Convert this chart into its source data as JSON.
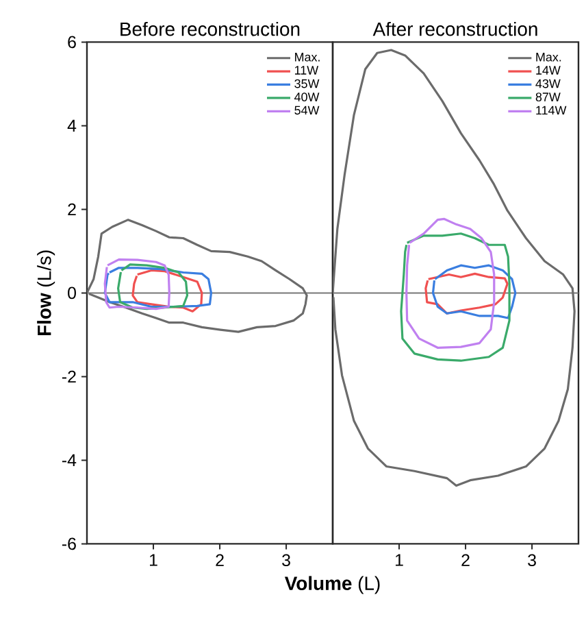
{
  "chart_data": [
    {
      "type": "line",
      "title": "Before reconstruction",
      "xlabel": "**Volume** (L)",
      "ylabel": "**Flow** (L/s)",
      "xlim": [
        0,
        3.7
      ],
      "ylim": [
        -6,
        6
      ],
      "xticks": [
        1,
        2,
        3
      ],
      "yticks": [
        -6,
        -4,
        -2,
        0,
        2,
        4,
        6
      ],
      "grid": false,
      "legend": "top right",
      "marker": "none",
      "line_style": "solid",
      "ref_lines": [
        {
          "axis": "y",
          "value": 0,
          "color": "#777777"
        }
      ],
      "series": [
        {
          "name": "Max.",
          "color": "#6b6b6b",
          "x": [
            0,
            0.1,
            0.17,
            0.22,
            0.38,
            0.62,
            0.83,
            1.04,
            1.24,
            1.45,
            1.66,
            1.87,
            2.15,
            2.42,
            2.63,
            2.84,
            3.05,
            3.25,
            3.31,
            3.29,
            3.25,
            3.11,
            2.84,
            2.56,
            2.28,
            2.01,
            1.73,
            1.45,
            1.24,
            1.04,
            0.83,
            0.55,
            0.34,
            0.17,
            0.03
          ],
          "values": [
            0,
            0.33,
            0.87,
            1.42,
            1.58,
            1.75,
            1.62,
            1.48,
            1.33,
            1.31,
            1.15,
            1.0,
            0.98,
            0.87,
            0.76,
            0.54,
            0.33,
            0.11,
            -0.06,
            -0.27,
            -0.49,
            -0.66,
            -0.79,
            -0.82,
            -0.93,
            -0.88,
            -0.82,
            -0.71,
            -0.71,
            -0.6,
            -0.49,
            -0.33,
            -0.22,
            -0.11,
            -0.02
          ]
        },
        {
          "name": "11W",
          "color": "#f05050",
          "x": [
            0.76,
            0.97,
            1.17,
            1.45,
            1.66,
            1.73,
            1.72,
            1.59,
            1.45,
            1.24,
            0.97,
            0.76,
            0.69,
            0.71,
            0.75
          ],
          "values": [
            0.44,
            0.54,
            0.52,
            0.38,
            0.27,
            0,
            -0.27,
            -0.44,
            -0.35,
            -0.33,
            -0.27,
            -0.22,
            -0.06,
            0.22,
            0.41
          ]
        },
        {
          "name": "35W",
          "color": "#3a7ee0",
          "x": [
            0.34,
            0.48,
            0.76,
            1.11,
            1.45,
            1.73,
            1.83,
            1.87,
            1.85,
            1.66,
            1.31,
            0.97,
            0.69,
            0.34,
            0.27,
            0.31,
            0.33
          ],
          "values": [
            0.49,
            0.6,
            0.6,
            0.57,
            0.49,
            0.46,
            0.33,
            0,
            -0.27,
            -0.31,
            -0.33,
            -0.33,
            -0.22,
            -0.22,
            0,
            0.44,
            0.47
          ]
        },
        {
          "name": "40W",
          "color": "#3aaa6a",
          "x": [
            0.52,
            0.65,
            0.9,
            1.17,
            1.38,
            1.49,
            1.51,
            1.45,
            1.17,
            0.9,
            0.69,
            0.5,
            0.47,
            0.51
          ],
          "values": [
            0.54,
            0.68,
            0.66,
            0.6,
            0.49,
            0.27,
            -0.06,
            -0.31,
            -0.35,
            -0.38,
            -0.35,
            -0.22,
            0.11,
            0.5
          ]
        },
        {
          "name": "54W",
          "color": "#c080f0",
          "x": [
            0.31,
            0.48,
            0.76,
            1.04,
            1.17,
            1.23,
            1.24,
            1.23,
            1.04,
            0.76,
            0.48,
            0.34,
            0.29,
            0.27,
            0.3
          ],
          "values": [
            0.66,
            0.8,
            0.79,
            0.74,
            0.66,
            0.44,
            0,
            -0.33,
            -0.38,
            -0.35,
            -0.33,
            -0.35,
            -0.22,
            0.22,
            0.62
          ]
        }
      ]
    },
    {
      "type": "line",
      "title": "After reconstruction",
      "xlim": [
        0,
        3.7
      ],
      "ylim": [
        -6,
        6
      ],
      "xticks": [
        1,
        2,
        3
      ],
      "tick_labels": "x",
      "grid": false,
      "legend": "top right",
      "marker": "none",
      "line_style": "solid",
      "ref_lines": [
        {
          "axis": "y",
          "value": 0,
          "color": "#777777"
        }
      ],
      "series": [
        {
          "name": "Max.",
          "color": "#6b6b6b",
          "x": [
            0,
            0.07,
            0.18,
            0.32,
            0.49,
            0.67,
            0.88,
            1.09,
            1.37,
            1.65,
            1.93,
            2.21,
            2.42,
            2.63,
            2.91,
            3.19,
            3.47,
            3.61,
            3.64,
            3.61,
            3.54,
            3.4,
            3.19,
            2.91,
            2.49,
            2.07,
            1.86,
            1.72,
            1.23,
            0.81,
            0.53,
            0.32,
            0.14,
            0.04,
            0.01
          ],
          "values": [
            0,
            1.53,
            2.84,
            4.26,
            5.35,
            5.74,
            5.81,
            5.68,
            5.25,
            4.59,
            3.82,
            3.17,
            2.62,
            1.97,
            1.31,
            0.76,
            0.44,
            0.11,
            -0.44,
            -1.31,
            -2.3,
            -3.06,
            -3.72,
            -4.15,
            -4.37,
            -4.48,
            -4.61,
            -4.43,
            -4.26,
            -4.15,
            -3.72,
            -3.06,
            -1.97,
            -0.87,
            -0.1
          ]
        },
        {
          "name": "14W",
          "color": "#f05050",
          "x": [
            1.44,
            1.58,
            1.75,
            1.93,
            2.14,
            2.35,
            2.59,
            2.63,
            2.56,
            2.45,
            2.21,
            1.93,
            1.72,
            1.58,
            1.42,
            1.4,
            1.43
          ],
          "values": [
            0.33,
            0.38,
            0.44,
            0.38,
            0.46,
            0.38,
            0.35,
            0.22,
            -0.11,
            -0.27,
            -0.35,
            -0.42,
            -0.49,
            -0.27,
            -0.22,
            0.11,
            0.3
          ]
        },
        {
          "name": "43W",
          "color": "#3a7ee0",
          "x": [
            1.54,
            1.72,
            1.93,
            2.14,
            2.35,
            2.56,
            2.7,
            2.75,
            2.7,
            2.64,
            2.49,
            2.21,
            1.93,
            1.72,
            1.58,
            1.51,
            1.53
          ],
          "values": [
            0.33,
            0.54,
            0.66,
            0.6,
            0.66,
            0.54,
            0.33,
            0,
            -0.33,
            -0.6,
            -0.55,
            -0.55,
            -0.44,
            -0.49,
            -0.33,
            0,
            0.3
          ]
        },
        {
          "name": "87W",
          "color": "#3aaa6a",
          "x": [
            1.12,
            1.37,
            1.65,
            1.93,
            2.14,
            2.35,
            2.59,
            2.64,
            2.66,
            2.66,
            2.56,
            2.35,
            1.93,
            1.58,
            1.23,
            1.05,
            1.03,
            1.07,
            1.09,
            1.11
          ],
          "values": [
            1.2,
            1.37,
            1.37,
            1.42,
            1.31,
            1.15,
            1.15,
            0.87,
            0.22,
            -0.66,
            -1.31,
            -1.53,
            -1.62,
            -1.59,
            -1.45,
            -1.09,
            -0.44,
            0.44,
            0.98,
            1.15
          ]
        },
        {
          "name": "114W",
          "color": "#c080f0",
          "x": [
            1.16,
            1.37,
            1.58,
            1.68,
            1.86,
            2.07,
            2.24,
            2.38,
            2.43,
            2.43,
            2.38,
            2.21,
            1.93,
            1.58,
            1.3,
            1.12,
            1.11,
            1.12,
            1.15
          ],
          "values": [
            1.2,
            1.42,
            1.75,
            1.77,
            1.64,
            1.53,
            1.31,
            0.98,
            0.44,
            -0.22,
            -0.87,
            -1.2,
            -1.29,
            -1.31,
            -1.09,
            -0.66,
            0,
            0.66,
            1.15
          ]
        }
      ]
    }
  ]
}
